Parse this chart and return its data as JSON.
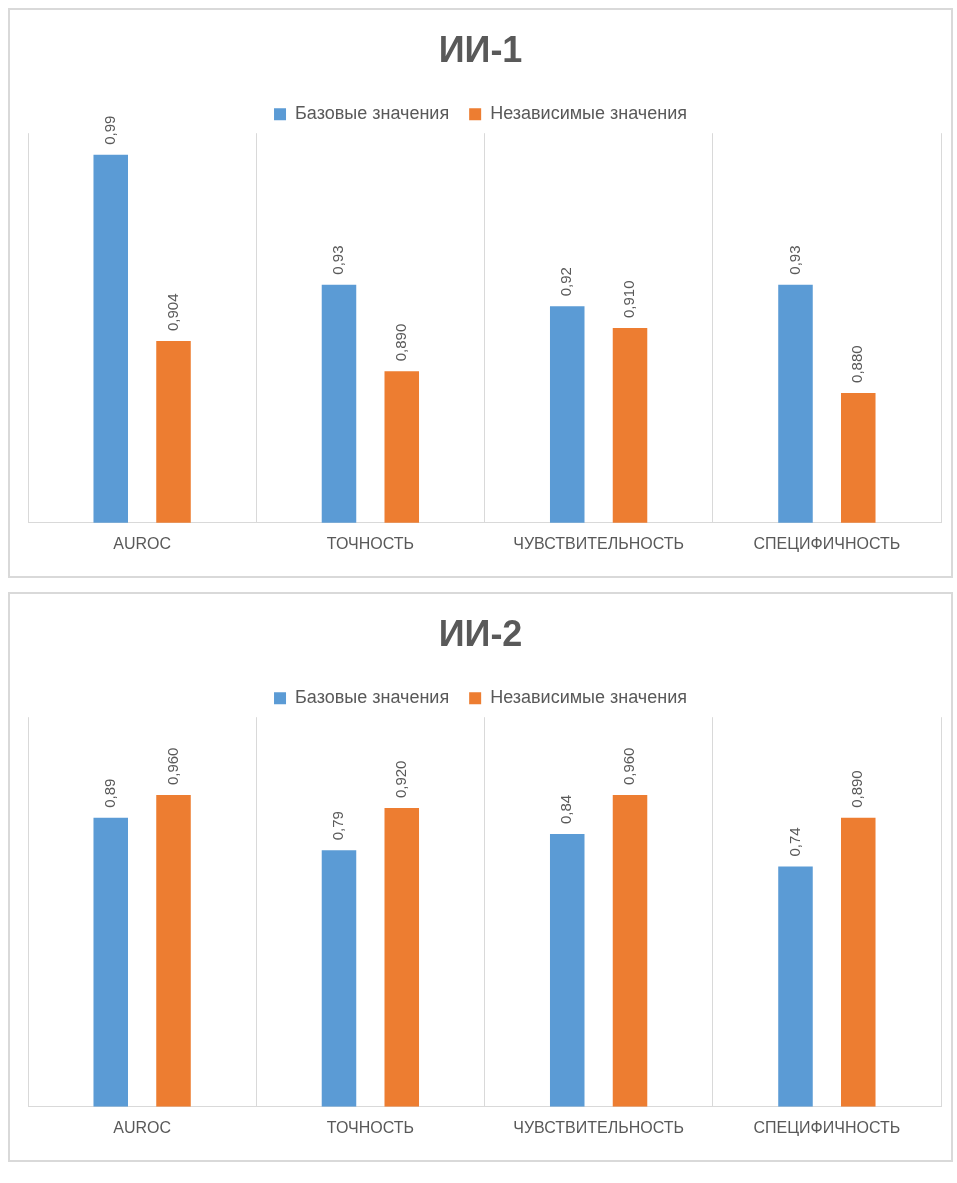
{
  "chart_data": [
    {
      "type": "bar",
      "title": "ИИ-1",
      "categories": [
        "AUROC",
        "ТОЧНОСТЬ",
        "ЧУВСТВИТЕЛЬНОСТЬ",
        "СПЕЦИФИЧНОСТЬ"
      ],
      "series": [
        {
          "name": "Базовые значения",
          "color": "#5b9bd5",
          "values": [
            0.99,
            0.93,
            0.92,
            0.93
          ],
          "value_labels": [
            "0,99",
            "0,93",
            "0,92",
            "0,93"
          ]
        },
        {
          "name": "Независимые значения",
          "color": "#ed7d31",
          "values": [
            0.904,
            0.89,
            0.91,
            0.88
          ],
          "value_labels": [
            "0,904",
            "0,890",
            "0,910",
            "0,880"
          ]
        }
      ],
      "ylim": [
        0.82,
        1.0
      ],
      "tick_labels": "x",
      "grid": "x",
      "legend": "top"
    },
    {
      "type": "bar",
      "title": "ИИ-2",
      "categories": [
        "AUROC",
        "ТОЧНОСТЬ",
        "ЧУВСТВИТЕЛЬНОСТЬ",
        "СПЕЦИФИЧНОСТЬ"
      ],
      "series": [
        {
          "name": "Базовые значения",
          "color": "#5b9bd5",
          "values": [
            0.89,
            0.79,
            0.84,
            0.74
          ],
          "value_labels": [
            "0,89",
            "0,79",
            "0,84",
            "0,74"
          ]
        },
        {
          "name": "Независимые значения",
          "color": "#ed7d31",
          "values": [
            0.96,
            0.92,
            0.96,
            0.89
          ],
          "value_labels": [
            "0,960",
            "0,920",
            "0,960",
            "0,890"
          ]
        }
      ],
      "ylim": [
        0,
        1.2
      ],
      "tick_labels": "x",
      "grid": "x",
      "legend": "top"
    }
  ]
}
